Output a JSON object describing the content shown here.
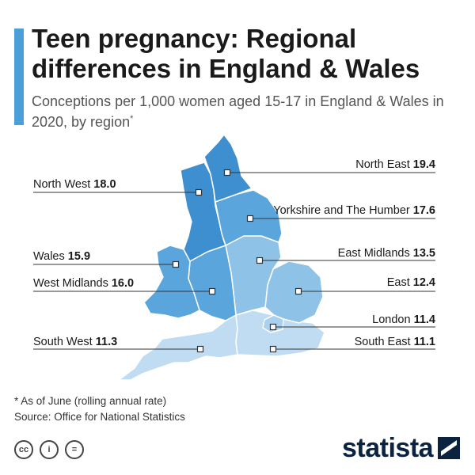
{
  "title": "Teen pregnancy: Regional differences in England & Wales",
  "subtitle": "Conceptions per 1,000 women aged 15-17 in England & Wales in 2020, by region",
  "subtitle_marker": "*",
  "colors": {
    "accent": "#4a9fd8",
    "dark": "#3d8fcf",
    "mid": "#5aa5dc",
    "light": "#8ec2e7",
    "lighter": "#a9d0ee",
    "lightest": "#c0dcf2",
    "leader": "#333333"
  },
  "regions": [
    {
      "name": "North East",
      "value": "19.4"
    },
    {
      "name": "North West",
      "value": "18.0"
    },
    {
      "name": "Yorkshire and The Humber",
      "value": "17.6"
    },
    {
      "name": "Wales",
      "value": "15.9"
    },
    {
      "name": "East Midlands",
      "value": "13.5"
    },
    {
      "name": "West Midlands",
      "value": "16.0"
    },
    {
      "name": "East",
      "value": "12.4"
    },
    {
      "name": "London",
      "value": "11.4"
    },
    {
      "name": "South West",
      "value": "11.3"
    },
    {
      "name": "South East",
      "value": "11.1"
    }
  ],
  "footnote": "* As of June (rolling annual rate)",
  "source": "Source: Office for National Statistics",
  "license_icons": [
    "cc-icon",
    "person-icon",
    "equals-icon"
  ],
  "license_glyphs": [
    "cc",
    "i",
    "="
  ],
  "logo": "statista"
}
